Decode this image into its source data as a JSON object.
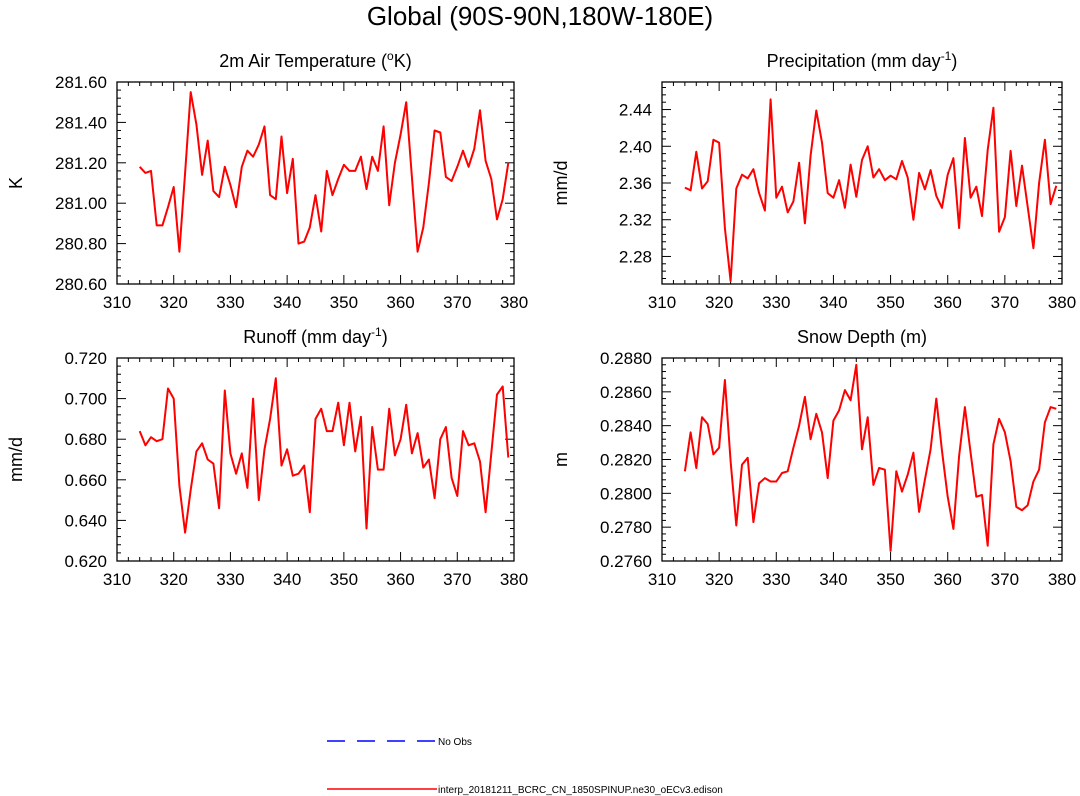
{
  "main_title": "Global (90S-90N,180W-180E)",
  "colors": {
    "model_line": "#ff0000",
    "obs_line": "#0000ff",
    "axis": "#000000"
  },
  "legend": {
    "obs_label": "No Obs",
    "model_label": "interp_20181211_BCRC_CN_1850SPINUP.ne30_oECv3.edison"
  },
  "chart_data": [
    {
      "type": "line",
      "title": "2m Air Temperature (°K)",
      "title_main": "2m Air Temperature (",
      "title_sup": "o",
      "title_tail": "K)",
      "xlabel": "",
      "ylabel": "K",
      "xlim": [
        310,
        380
      ],
      "ylim": [
        280.6,
        281.6
      ],
      "x_ticks": [
        310,
        320,
        330,
        340,
        350,
        360,
        370,
        380
      ],
      "y_ticks": [
        280.6,
        280.8,
        281.0,
        281.2,
        281.4,
        281.6
      ],
      "y_tick_labels": [
        "280.60",
        "280.80",
        "281.00",
        "281.20",
        "281.40",
        "281.60"
      ],
      "x_start": 314,
      "series": [
        {
          "name": "interp_20181211_BCRC_CN_1850SPINUP.ne30_oECv3.edison",
          "values": [
            281.18,
            281.15,
            281.16,
            280.89,
            280.89,
            280.98,
            281.08,
            280.76,
            281.15,
            281.55,
            281.39,
            281.14,
            281.31,
            281.06,
            281.03,
            281.18,
            281.09,
            280.98,
            281.18,
            281.26,
            281.23,
            281.29,
            281.38,
            281.04,
            281.02,
            281.33,
            281.05,
            281.22,
            280.8,
            280.81,
            280.88,
            281.04,
            280.86,
            281.16,
            281.04,
            281.12,
            281.19,
            281.16,
            281.16,
            281.23,
            281.07,
            281.23,
            281.16,
            281.38,
            280.99,
            281.2,
            281.34,
            281.5,
            281.13,
            280.76,
            280.88,
            281.1,
            281.36,
            281.35,
            281.13,
            281.11,
            281.18,
            281.26,
            281.18,
            281.27,
            281.46,
            281.21,
            281.12,
            280.92,
            281.02,
            281.2
          ]
        }
      ]
    },
    {
      "type": "line",
      "title": "Precipitation (mm day-1)",
      "title_main": "Precipitation (mm day",
      "title_sup": "-1",
      "title_tail": ")",
      "xlabel": "",
      "ylabel": "mm/d",
      "xlim": [
        310,
        380
      ],
      "ylim": [
        2.25,
        2.47
      ],
      "x_ticks": [
        310,
        320,
        330,
        340,
        350,
        360,
        370,
        380
      ],
      "y_ticks": [
        2.28,
        2.32,
        2.36,
        2.4,
        2.44
      ],
      "y_tick_labels": [
        "2.28",
        "2.32",
        "2.36",
        "2.40",
        "2.44"
      ],
      "x_start": 314,
      "series": [
        {
          "name": "interp_20181211_BCRC_CN_1850SPINUP.ne30_oECv3.edison",
          "values": [
            2.355,
            2.352,
            2.394,
            2.354,
            2.362,
            2.407,
            2.404,
            2.311,
            2.253,
            2.354,
            2.369,
            2.365,
            2.375,
            2.349,
            2.33,
            2.451,
            2.344,
            2.356,
            2.328,
            2.34,
            2.382,
            2.316,
            2.39,
            2.439,
            2.404,
            2.349,
            2.344,
            2.363,
            2.333,
            2.38,
            2.345,
            2.385,
            2.4,
            2.366,
            2.375,
            2.363,
            2.368,
            2.364,
            2.384,
            2.366,
            2.32,
            2.371,
            2.353,
            2.374,
            2.346,
            2.333,
            2.369,
            2.387,
            2.311,
            2.409,
            2.344,
            2.356,
            2.324,
            2.396,
            2.442,
            2.307,
            2.323,
            2.395,
            2.335,
            2.379,
            2.334,
            2.289,
            2.36,
            2.407,
            2.337,
            2.357
          ]
        }
      ]
    },
    {
      "type": "line",
      "title": "Runoff (mm day-1)",
      "title_main": "Runoff (mm day",
      "title_sup": "-1",
      "title_tail": ")",
      "xlabel": "",
      "ylabel": "mm/d",
      "xlim": [
        310,
        380
      ],
      "ylim": [
        0.62,
        0.72
      ],
      "x_ticks": [
        310,
        320,
        330,
        340,
        350,
        360,
        370,
        380
      ],
      "y_ticks": [
        0.62,
        0.64,
        0.66,
        0.68,
        0.7,
        0.72
      ],
      "y_tick_labels": [
        "0.620",
        "0.640",
        "0.660",
        "0.680",
        "0.700",
        "0.720"
      ],
      "x_start": 314,
      "series": [
        {
          "name": "interp_20181211_BCRC_CN_1850SPINUP.ne30_oECv3.edison",
          "values": [
            0.684,
            0.677,
            0.681,
            0.679,
            0.68,
            0.705,
            0.7,
            0.657,
            0.634,
            0.655,
            0.674,
            0.678,
            0.67,
            0.668,
            0.646,
            0.704,
            0.673,
            0.663,
            0.673,
            0.656,
            0.7,
            0.65,
            0.675,
            0.69,
            0.71,
            0.667,
            0.675,
            0.662,
            0.663,
            0.667,
            0.644,
            0.69,
            0.695,
            0.684,
            0.684,
            0.698,
            0.677,
            0.698,
            0.674,
            0.691,
            0.636,
            0.686,
            0.665,
            0.665,
            0.695,
            0.672,
            0.68,
            0.697,
            0.673,
            0.683,
            0.666,
            0.67,
            0.651,
            0.68,
            0.686,
            0.661,
            0.652,
            0.684,
            0.677,
            0.678,
            0.669,
            0.644,
            0.673,
            0.702,
            0.706,
            0.671
          ]
        }
      ]
    },
    {
      "type": "line",
      "title": "Snow Depth (m)",
      "title_main": "Snow Depth (m)",
      "title_sup": "",
      "title_tail": "",
      "xlabel": "",
      "ylabel": "m",
      "xlim": [
        310,
        380
      ],
      "ylim": [
        0.276,
        0.288
      ],
      "x_ticks": [
        310,
        320,
        330,
        340,
        350,
        360,
        370,
        380
      ],
      "y_ticks": [
        0.276,
        0.278,
        0.28,
        0.282,
        0.284,
        0.286,
        0.288
      ],
      "y_tick_labels": [
        "0.2760",
        "0.2780",
        "0.2800",
        "0.2820",
        "0.2840",
        "0.2860",
        "0.2880"
      ],
      "x_start": 314,
      "series": [
        {
          "name": "interp_20181211_BCRC_CN_1850SPINUP.ne30_oECv3.edison",
          "values": [
            0.2813,
            0.2836,
            0.2815,
            0.2845,
            0.2841,
            0.2823,
            0.2827,
            0.2867,
            0.2819,
            0.2781,
            0.2817,
            0.2821,
            0.2783,
            0.2806,
            0.2809,
            0.2807,
            0.2807,
            0.2812,
            0.2813,
            0.2827,
            0.284,
            0.2857,
            0.2832,
            0.2847,
            0.2836,
            0.2809,
            0.2843,
            0.2849,
            0.2861,
            0.2855,
            0.2876,
            0.2826,
            0.2845,
            0.2805,
            0.2815,
            0.2814,
            0.2766,
            0.2813,
            0.2801,
            0.2811,
            0.2824,
            0.2789,
            0.2808,
            0.2826,
            0.2856,
            0.2825,
            0.2798,
            0.2779,
            0.2822,
            0.2851,
            0.2824,
            0.2798,
            0.2799,
            0.2769,
            0.2829,
            0.2844,
            0.2836,
            0.2819,
            0.2792,
            0.279,
            0.2793,
            0.2807,
            0.2814,
            0.2842,
            0.2851,
            0.285
          ]
        }
      ]
    }
  ]
}
